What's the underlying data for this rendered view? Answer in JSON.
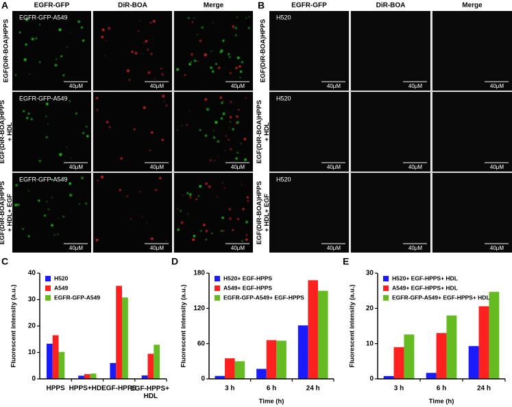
{
  "panels": {
    "A": {
      "letter": "A",
      "columns": [
        "EGFR-GFP",
        "DiR-BOA",
        "Merge"
      ],
      "row_labels": [
        [
          "EGF(DiR-BOA)HPPS"
        ],
        [
          "EGF(DiR-BOA)HPPS",
          "+ HDL"
        ],
        [
          "EGF(DiR-BOA)HPPS",
          "+ HDL+ EGF"
        ]
      ],
      "cell_label": "EGFR-GFP-A549",
      "scale_bar": "40μM"
    },
    "B": {
      "letter": "B",
      "columns": [
        "EGFR-GFP",
        "DiR-BOA",
        "Merge"
      ],
      "row_labels": [
        [
          "EGF(DiR-BOA)HPPS"
        ],
        [
          "EGF(DiR-BOA)HPPS",
          "+ HDL"
        ],
        [
          "EGF(DiR-BOA)HPPS",
          "+ HDL+ EGF"
        ]
      ],
      "cell_label": "H520",
      "scale_bar": "40μM"
    }
  },
  "chart_data": [
    {
      "type": "bar",
      "panel_label": "C",
      "y_label": "Fluorescent intensity (a.u.)",
      "categories": [
        "HPPS",
        "HPPS+HDL",
        "EGF-HPPS",
        "EGF-HPPS+ HDL"
      ],
      "series": [
        {
          "name": "H520",
          "color": "#1a1aff",
          "values": [
            13.3,
            1.2,
            6,
            1.3
          ]
        },
        {
          "name": "A549",
          "color": "#ff2020",
          "values": [
            16.5,
            1.8,
            35.2,
            9.5
          ]
        },
        {
          "name": "EGFR-GFP-A549",
          "color": "#66bb22",
          "values": [
            10.2,
            2,
            30.8,
            12.9
          ]
        }
      ],
      "ylim": [
        0,
        40
      ],
      "yticks": [
        0,
        10,
        20,
        30,
        40
      ],
      "grid": false,
      "legend": "top-left"
    },
    {
      "type": "bar",
      "panel_label": "D",
      "y_label": "Fluorescent intensity (a.u.)",
      "x_label": "Time (h)",
      "categories": [
        "3 h",
        "6 h",
        "24 h"
      ],
      "series": [
        {
          "name": "H520+ EGF-HPPS",
          "color": "#1a1aff",
          "values": [
            5,
            17,
            91
          ]
        },
        {
          "name": "A549+ EGF-HPPS",
          "color": "#ff2020",
          "values": [
            35,
            66,
            168
          ]
        },
        {
          "name": "EGFR-GFP-A549+ EGF-HPPS",
          "color": "#66bb22",
          "values": [
            30,
            65,
            150
          ]
        }
      ],
      "ylim": [
        0,
        180
      ],
      "yticks": [
        0,
        60,
        120,
        180
      ],
      "grid": false,
      "legend": "top-left"
    },
    {
      "type": "bar",
      "panel_label": "E",
      "y_label": "Fluorescent intensity (a.u.)",
      "x_label": "Time (h)",
      "categories": [
        "3 h",
        "6 h",
        "24 h"
      ],
      "series": [
        {
          "name": "H520+ EGF-HPPS+ HDL",
          "color": "#1a1aff",
          "values": [
            0.8,
            1.7,
            9.3
          ]
        },
        {
          "name": "A549+ EGF-HPPS+ HDL",
          "color": "#ff2020",
          "values": [
            9,
            13,
            20.6
          ]
        },
        {
          "name": "EGFR-GFP-A549+ EGF-HPPS+ HDL",
          "color": "#66bb22",
          "values": [
            12.6,
            18,
            24.7
          ]
        }
      ],
      "ylim": [
        0,
        30
      ],
      "yticks": [
        0,
        10,
        20,
        30
      ],
      "grid": false,
      "legend": "top-left"
    }
  ]
}
